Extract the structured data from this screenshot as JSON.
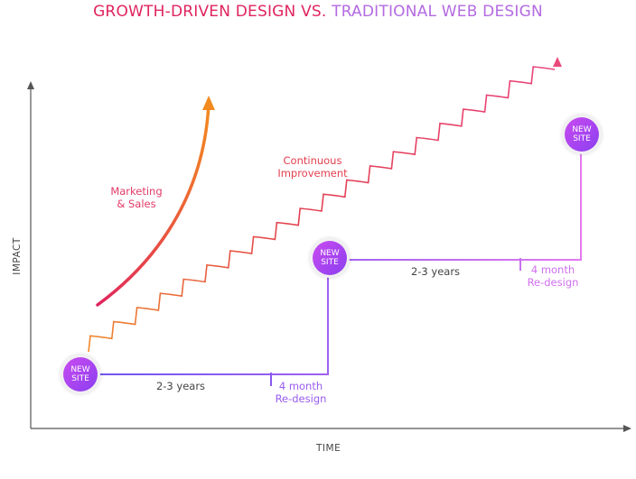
{
  "title": {
    "part1": "GROWTH-DRIVEN DESIGN VS.",
    "part2": "TRADITIONAL WEB DESIGN"
  },
  "axes": {
    "y_label": "IMPACT",
    "x_label": "TIME"
  },
  "labels": {
    "marketing_line1": "Marketing",
    "marketing_line2": "& Sales",
    "continuous_line1": "Continuous",
    "continuous_line2": "Improvement",
    "years_1": "2-3 years",
    "years_2": "2-3 years",
    "redesign_1_line1": "4 month",
    "redesign_1_line2": "Re-design",
    "redesign_2_line1": "4 month",
    "redesign_2_line2": "Re-design"
  },
  "badges": {
    "line1": "NEW",
    "line2": "SITE"
  },
  "colors": {
    "title_pink": "#e0245e",
    "title_purple": "#b36ae2",
    "staircase_orange": "#e98a2c",
    "marketing_gradient_start": "#e0245e",
    "marketing_gradient_end": "#f38a1f",
    "traditional_line_start": "#7a54f0",
    "traditional_line_end": "#e07af0",
    "badge_fill": "#a345f0"
  }
}
